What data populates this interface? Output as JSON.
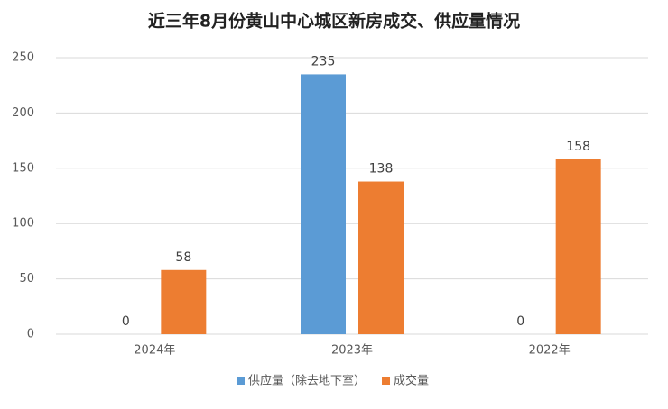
{
  "chart_data": {
    "type": "bar",
    "title": "近三年8月份黄山中心城区新房成交、供应量情况",
    "categories": [
      "2024年",
      "2023年",
      "2022年"
    ],
    "series": [
      {
        "name": "供应量（除去地下室）",
        "color": "#5b9bd5",
        "values": [
          0,
          235,
          0
        ]
      },
      {
        "name": "成交量",
        "color": "#ed7d31",
        "values": [
          58,
          138,
          158
        ]
      }
    ],
    "ylim": [
      0,
      250
    ],
    "yticks": [
      0,
      50,
      100,
      150,
      200,
      250
    ],
    "grid": true,
    "legend": "bottom"
  }
}
